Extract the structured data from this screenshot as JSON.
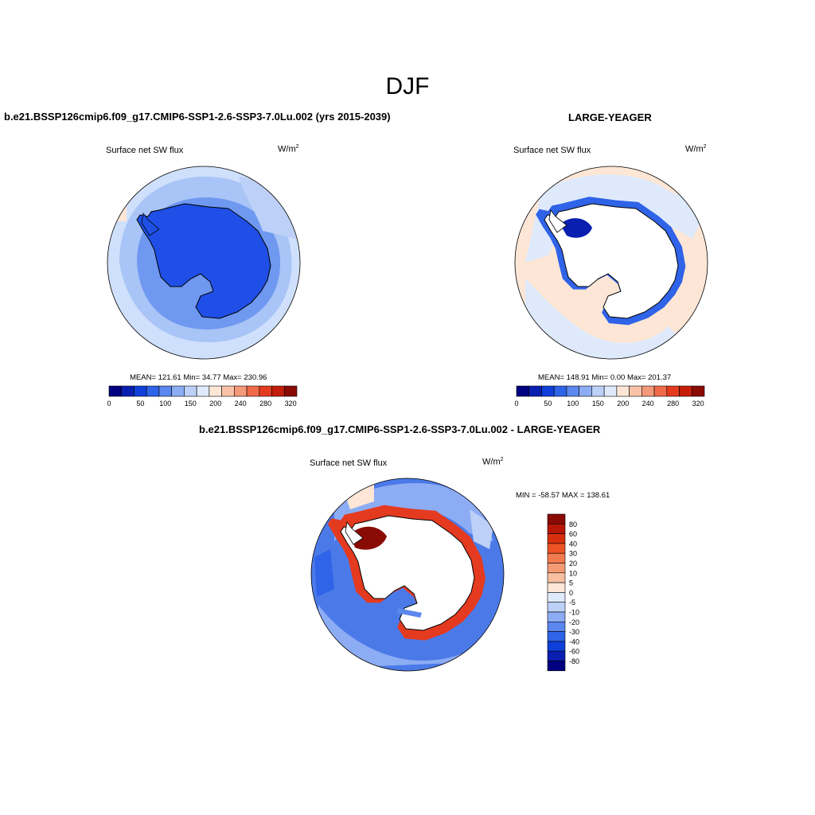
{
  "title": "DJF",
  "panels": [
    {
      "title": "b.e21.BSSP126cmip6.f09_g17.CMIP6-SSP1-2.6-SSP3-7.0Lu.002 (yrs 2015-2039)",
      "variable": "Surface net SW flux",
      "units": "W/m",
      "units_sup": "2",
      "stats": "MEAN= 121.61  Min=  34.77  Max= 230.96"
    },
    {
      "title": "LARGE-YEAGER",
      "variable": "Surface net SW flux",
      "units": "W/m",
      "units_sup": "2",
      "stats": "MEAN= 148.91  Min=   0.00  Max= 201.37"
    }
  ],
  "diff_panel": {
    "title": "b.e21.BSSP126cmip6.f09_g17.CMIP6-SSP1-2.6-SSP3-7.0Lu.002 - LARGE-YEAGER",
    "variable": "Surface net SW flux",
    "units": "W/m",
    "units_sup": "2",
    "stats": "MIN = -58.57 MAX = 138.61"
  },
  "colorbar_main": {
    "colors": [
      "#000080",
      "#0a1fb0",
      "#0f3fd8",
      "#2f63e8",
      "#5b87ee",
      "#8cacf4",
      "#bcd0f8",
      "#deeafc",
      "#fde6d6",
      "#f9c2a6",
      "#f4987a",
      "#ef6a4a",
      "#e43a20",
      "#c41d0a",
      "#8a0a04"
    ],
    "tick_labels": [
      "0",
      "50",
      "100",
      "150",
      "200",
      "240",
      "280",
      "320"
    ]
  },
  "colorbar_diff": {
    "colors": [
      "#8a0a04",
      "#b81606",
      "#d8300e",
      "#ee5326",
      "#f17a4e",
      "#f49b74",
      "#f8c0a0",
      "#fde6d6",
      "#deeafc",
      "#bcd0f8",
      "#8cacf4",
      "#5b87ee",
      "#2f63e8",
      "#0f3fd8",
      "#0a1fb0",
      "#000080"
    ],
    "tick_labels": [
      "80",
      "60",
      "40",
      "30",
      "20",
      "10",
      "5",
      "0",
      "-5",
      "-10",
      "-20",
      "-30",
      "-40",
      "-60",
      "-80"
    ]
  }
}
